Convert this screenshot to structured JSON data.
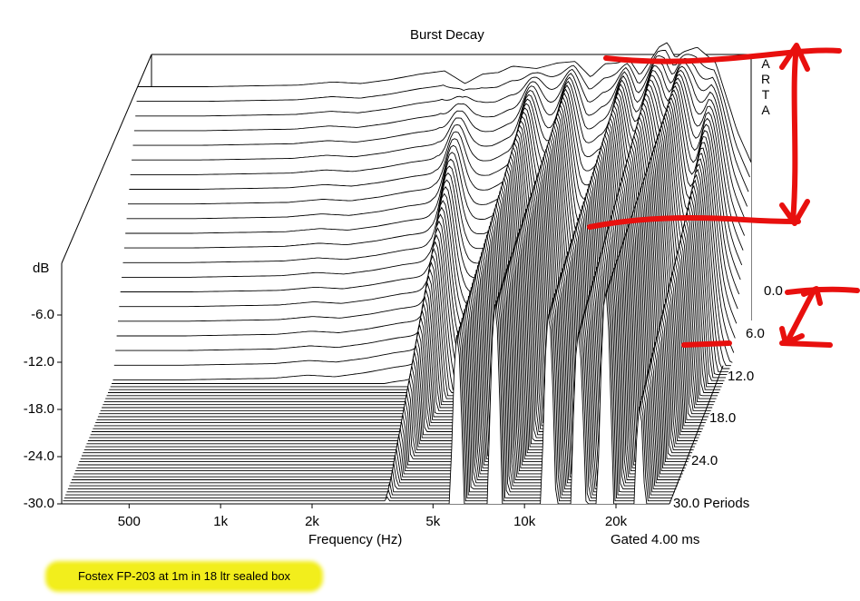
{
  "chart_data": {
    "type": "waterfall",
    "title": "Burst Decay",
    "xlabel": "Frequency (Hz)",
    "ylabel": "dB",
    "zlabel": "Periods",
    "x_scale": "log",
    "xlim": [
      300,
      30000
    ],
    "x_ticks": [
      "500",
      "1k",
      "2k",
      "5k",
      "10k",
      "20k"
    ],
    "x_tick_values": [
      500,
      1000,
      2000,
      5000,
      10000,
      20000
    ],
    "y_ticks": [
      "-6.0",
      "-12.0",
      "-18.0",
      "-24.0",
      "-30.0"
    ],
    "ylim": [
      -30,
      0
    ],
    "z_ticks": [
      "0.0",
      "6.0",
      "12.0",
      "18.0",
      "24.0",
      "30.0 Periods"
    ],
    "zlim": [
      0,
      30
    ],
    "note": "Gated 4.00 ms",
    "watermark": "ARTA",
    "profile": {
      "x": [
        300,
        500,
        700,
        1000,
        1300,
        1600,
        2000,
        2500,
        3000,
        3500,
        4000,
        4500,
        5000,
        6000,
        7000,
        8000,
        9000,
        10000,
        11000,
        12000,
        13000,
        14000,
        15000,
        16000,
        17000,
        18000,
        20000,
        23000,
        27000,
        30000
      ],
      "y": [
        -0.4,
        -0.4,
        -0.3,
        -0.2,
        0.2,
        0.0,
        0.5,
        1.2,
        1.6,
        0.0,
        1.2,
        1.4,
        2.2,
        1.9,
        2.6,
        2.8,
        0.8,
        2.5,
        2.6,
        3.1,
        1.0,
        2.8,
        4.6,
        5.2,
        3.2,
        4.0,
        4.6,
        2.6,
        -6.0,
        -10.0
      ]
    },
    "decay": [
      {
        "x": 3500,
        "rate": 1.0
      },
      {
        "x": 6000,
        "rate": 0.35
      },
      {
        "x": 8000,
        "rate": 0.25
      },
      {
        "x": 12000,
        "rate": 0.3
      },
      {
        "x": 15000,
        "rate": 0.45
      },
      {
        "x": 18500,
        "rate": 0.25
      },
      {
        "x": 24000,
        "rate": 0.6
      }
    ]
  },
  "annotations": {
    "caption": "Fostex FP-203 at 1m in 18 ltr sealed box",
    "arrow_color": "#e8100e"
  }
}
